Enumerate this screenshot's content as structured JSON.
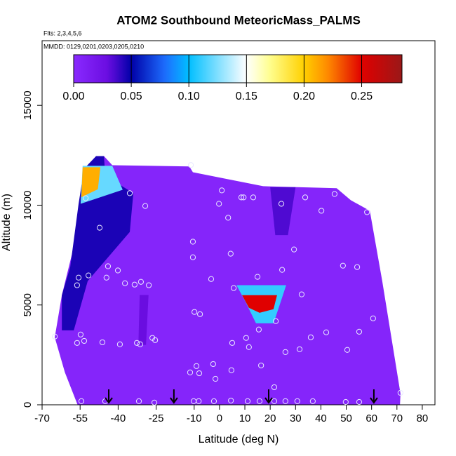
{
  "chart_data": {
    "type": "field",
    "title": "ATOM2 Southbound MeteoricMass_PALMS",
    "subtitle": "Flts: 2,3,4,5,6",
    "annotation": "MMDD: 0129,0201,0203,0205,0210",
    "x_label": "Latitude (deg N)",
    "y_label": "Altitude (m)",
    "xlim": [
      -70,
      85
    ],
    "ylim": [
      0,
      18240
    ],
    "xticks": [
      -70,
      -55,
      -40,
      -25,
      -10,
      0,
      10,
      20,
      30,
      40,
      50,
      60,
      70,
      80
    ],
    "yticks": [
      0,
      5000,
      10000,
      15000
    ],
    "colorbar_lim": [
      0,
      0.285
    ],
    "colorbar_ticks": [
      {
        "value": 0,
        "label": "0.00"
      },
      {
        "value": 0.05,
        "label": "0.05"
      },
      {
        "value": 0.1,
        "label": "0.10"
      },
      {
        "value": 0.15,
        "label": "0.15"
      },
      {
        "value": 0.2,
        "label": "0.20"
      },
      {
        "value": 0.25,
        "label": "0.25"
      }
    ],
    "colormap": [
      [
        0,
        "#8a2aff"
      ],
      [
        0.03,
        "#6a0de0"
      ],
      [
        0.05,
        "#0000a8"
      ],
      [
        0.08,
        "#1e6fff"
      ],
      [
        0.1,
        "#00bfff"
      ],
      [
        0.15,
        "#ffffff"
      ],
      [
        0.17,
        "#ffff90"
      ],
      [
        0.2,
        "#ffd000"
      ],
      [
        0.22,
        "#ff8c00"
      ],
      [
        0.25,
        "#e00000"
      ],
      [
        0.285,
        "#9a1818"
      ]
    ],
    "domain": {
      "value": 0.005,
      "lat": [
        -48.7,
        -45.6,
        -42.3,
        -11.9,
        -10.5,
        17.2,
        46.2,
        51.8,
        59.3,
        64.2,
        71.4,
        71.2,
        -56,
        -61,
        -65,
        -62.2
      ],
      "alt": [
        12460,
        12460,
        12000,
        11940,
        11650,
        10950,
        10850,
        10250,
        9720,
        6200,
        560,
        0,
        0,
        1620,
        3380,
        5490
      ]
    },
    "features": [
      {
        "value": 0.045,
        "lat": [
          -48.7,
          -45.6,
          -45.1,
          -34,
          -35.4,
          -52,
          -57.5,
          -62.2,
          -62.2,
          -58.9,
          -55.6,
          -53.4
        ],
        "alt": [
          12460,
          12460,
          11480,
          10600,
          8660,
          6200,
          3730,
          3730,
          5490,
          6900,
          10070,
          11830
        ]
      },
      {
        "value": 0.03,
        "lat": [
          -31.5,
          -28,
          -29,
          -32
        ],
        "alt": [
          5500,
          5500,
          3000,
          3000
        ]
      },
      {
        "value": 0.035,
        "lat": [
          20,
          30,
          27,
          22
        ],
        "alt": [
          10900,
          10900,
          8500,
          8500
        ]
      },
      {
        "value": 0.12,
        "lat": [
          -54,
          -42.3,
          -38.2,
          -54.8
        ],
        "alt": [
          11970,
          11970,
          10770,
          10070
        ]
      },
      {
        "value": 0.21,
        "lat": [
          -54,
          -47,
          -48,
          -54.5
        ],
        "alt": [
          11900,
          11900,
          10800,
          10400
        ]
      },
      {
        "value": 0.11,
        "lat": [
          6.7,
          26.3,
          24.1,
          21.3,
          14.4,
          10.3
        ],
        "alt": [
          5990,
          5990,
          5140,
          4080,
          4080,
          5140
        ]
      },
      {
        "value": 0.25,
        "lat": [
          8.9,
          22.7,
          21.3,
          15.8,
          11.6
        ],
        "alt": [
          5490,
          5490,
          4790,
          4610,
          4860
        ]
      }
    ],
    "samples": {
      "lat": [
        -52.8,
        -47.3,
        -29.3,
        -35.4,
        -55.6,
        -51.7,
        -56.2,
        -44,
        -40.1,
        -44.6,
        -37.3,
        -33.5,
        -31,
        -27.9,
        -11.3,
        0.9,
        -0.2,
        3.4,
        8.6,
        9.5,
        13.3,
        24.4,
        33.8,
        40.2,
        45.4,
        58.2,
        -10.5,
        -10.5,
        4.4,
        29.4,
        24.7,
        15,
        48.7,
        54.3,
        -3.3,
        5.6,
        32.4,
        60.6,
        -9.9,
        -7.7,
        15.5,
        22.2,
        42.1,
        55.1,
        -54.8,
        -56.2,
        -53.4,
        -46.2,
        -65,
        -39.3,
        -32.6,
        -31.3,
        -26.5,
        -25.4,
        5,
        10.5,
        11.6,
        26,
        31.6,
        36,
        50.4,
        -2.5,
        4.7,
        16.4,
        -9.1,
        -8,
        -11.6,
        -1.6,
        21.6,
        -54.5,
        -45.1,
        -31.8,
        -25.7,
        -10.2,
        -8.2,
        -2.2,
        4.5,
        11.1,
        15.8,
        21.6,
        26,
        30.7,
        36.8,
        49.8,
        55.1,
        71.4
      ],
      "alt": [
        10350,
        8870,
        9960,
        10600,
        6370,
        6480,
        5990,
        6940,
        6730,
        6370,
        6090,
        6020,
        6160,
        5990,
        12010,
        10740,
        10070,
        9370,
        10390,
        10390,
        10390,
        10070,
        10390,
        9720,
        10560,
        9650,
        8170,
        7390,
        7570,
        7780,
        6760,
        6410,
        6970,
        6900,
        6300,
        5850,
        5530,
        4330,
        4650,
        4540,
        3770,
        4190,
        3630,
        3660,
        3520,
        3100,
        3200,
        3130,
        3420,
        3030,
        3100,
        3030,
        3350,
        3240,
        3100,
        3350,
        2890,
        2640,
        2780,
        3380,
        2750,
        2040,
        1730,
        1970,
        1940,
        1580,
        1620,
        1300,
        880,
        180,
        180,
        180,
        110,
        180,
        180,
        180,
        210,
        180,
        180,
        180,
        180,
        180,
        180,
        140,
        140,
        600
      ]
    },
    "arrows": [
      -43.7,
      -18,
      19.4,
      60.9
    ],
    "sample_color": "#e8e8ff",
    "arrow_color": "#000000"
  }
}
